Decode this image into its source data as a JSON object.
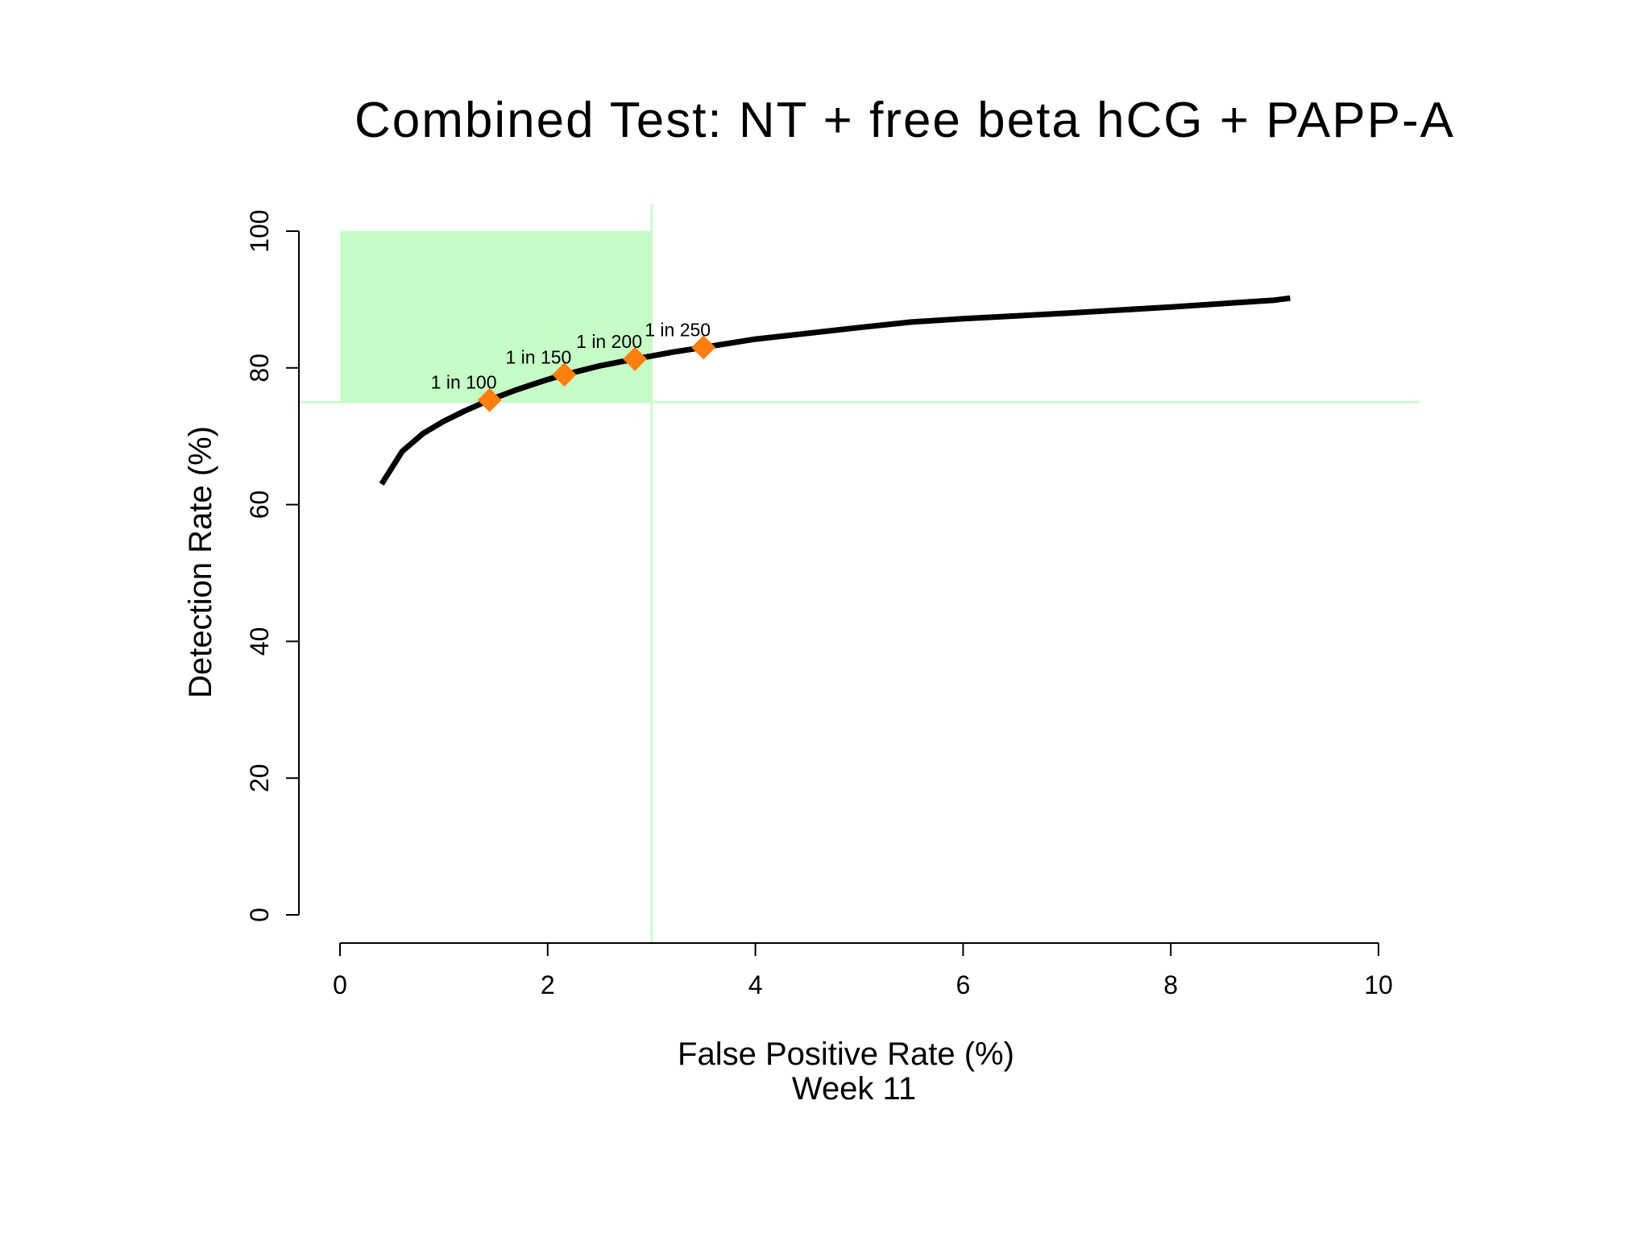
{
  "chart_data": {
    "type": "line",
    "title": "Combined Test: NT + free beta hCG + PAPP-A",
    "xlabel": "False Positive Rate (%)",
    "xlabel_line2": "Week 11",
    "ylabel": "Detection Rate (%)",
    "xlim": [
      0,
      10
    ],
    "ylim": [
      0,
      100
    ],
    "x_ticks": [
      "0",
      "2",
      "4",
      "6",
      "8",
      "10"
    ],
    "y_ticks": [
      "0",
      "20",
      "40",
      "60",
      "80",
      "100"
    ],
    "grid": false,
    "series": [
      {
        "x": [
          0.4,
          0.6,
          0.8,
          1.0,
          1.2,
          1.44,
          1.7,
          2.0,
          2.16,
          2.5,
          2.84,
          3.2,
          3.5,
          4.0,
          5.0,
          5.5,
          6.0,
          7.0,
          8.0,
          9.0,
          9.15
        ],
        "y": [
          63.0,
          67.8,
          70.4,
          72.2,
          73.7,
          75.3,
          76.8,
          78.3,
          79.0,
          80.3,
          81.3,
          82.3,
          83.0,
          84.2,
          85.9,
          86.7,
          87.2,
          88.0,
          88.9,
          89.9,
          90.2
        ],
        "color": "#000000"
      }
    ],
    "markers": [
      {
        "label": "1 in 100",
        "x": 1.44,
        "y": 75.3
      },
      {
        "label": "1 in 150",
        "x": 2.16,
        "y": 79.0
      },
      {
        "label": "1 in 200",
        "x": 2.84,
        "y": 81.3
      },
      {
        "label": "1 in 250",
        "x": 3.5,
        "y": 83.0
      }
    ],
    "marker_color": "#ff7f0e",
    "highlight_region": {
      "x": [
        0,
        3
      ],
      "y": [
        75,
        100
      ],
      "color": "#c6fcc6"
    },
    "reference_lines": {
      "x": 3,
      "y": 75,
      "color": "#c6fcc6"
    }
  }
}
